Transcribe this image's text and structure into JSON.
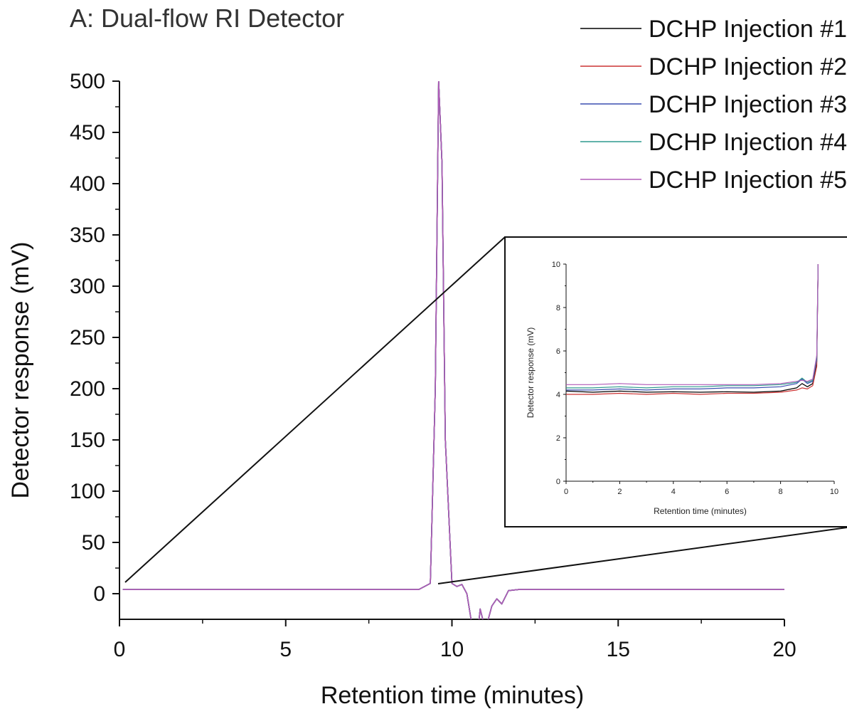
{
  "chart_data": [
    {
      "type": "line",
      "title": "A: Dual-flow RI Detector",
      "xlabel": "Retention time (minutes)",
      "ylabel": "Detector response (mV)",
      "xlim": [
        0,
        20
      ],
      "ylim": [
        -25,
        500
      ],
      "x_ticks": [
        "0",
        "5",
        "10",
        "15",
        "20"
      ],
      "y_ticks": [
        "0",
        "50",
        "100",
        "150",
        "200",
        "250",
        "300",
        "350",
        "400",
        "450",
        "500"
      ],
      "grid": false,
      "legend_position": "top-right",
      "series": [
        {
          "name": "DCHP Injection #1",
          "color": "#000000",
          "x": [
            0.1,
            9.0,
            9.35,
            9.5,
            9.6,
            9.7,
            9.8,
            10.0,
            10.15,
            10.3,
            10.45,
            10.6,
            10.8,
            10.85,
            10.95,
            11.05,
            11.2,
            11.35,
            11.5,
            11.7,
            12.0,
            20.0
          ],
          "y": [
            4,
            4,
            10,
            200,
            500,
            420,
            150,
            10,
            7,
            9,
            0,
            -30,
            -30,
            -15,
            -28,
            -30,
            -12,
            -5,
            -10,
            3,
            4,
            4
          ]
        },
        {
          "name": "DCHP Injection #2",
          "color": "#cc3333",
          "x": [
            0.1,
            9.0,
            9.35,
            9.5,
            9.6,
            9.7,
            9.8,
            10.0,
            10.15,
            10.3,
            10.45,
            10.6,
            10.8,
            10.85,
            10.95,
            11.05,
            11.2,
            11.35,
            11.5,
            11.7,
            12.0,
            20.0
          ],
          "y": [
            4,
            4,
            10,
            200,
            500,
            420,
            150,
            10,
            7,
            9,
            0,
            -30,
            -30,
            -15,
            -28,
            -30,
            -12,
            -5,
            -10,
            3,
            4,
            4
          ]
        },
        {
          "name": "DCHP Injection #3",
          "color": "#3a4fb0",
          "x": [
            0.1,
            9.0,
            9.35,
            9.5,
            9.6,
            9.7,
            9.8,
            10.0,
            10.15,
            10.3,
            10.45,
            10.6,
            10.8,
            10.85,
            10.95,
            11.05,
            11.2,
            11.35,
            11.5,
            11.7,
            12.0,
            20.0
          ],
          "y": [
            4,
            4,
            10,
            200,
            500,
            420,
            150,
            10,
            7,
            9,
            0,
            -30,
            -30,
            -15,
            -28,
            -30,
            -12,
            -5,
            -10,
            3,
            4,
            4
          ]
        },
        {
          "name": "DCHP Injection #4",
          "color": "#2f9a8e",
          "x": [
            0.1,
            9.0,
            9.35,
            9.5,
            9.6,
            9.7,
            9.8,
            10.0,
            10.15,
            10.3,
            10.45,
            10.6,
            10.8,
            10.85,
            10.95,
            11.05,
            11.2,
            11.35,
            11.5,
            11.7,
            12.0,
            20.0
          ],
          "y": [
            4,
            4,
            10,
            200,
            500,
            420,
            150,
            10,
            7,
            9,
            0,
            -30,
            -30,
            -15,
            -28,
            -30,
            -12,
            -5,
            -10,
            3,
            4,
            4
          ]
        },
        {
          "name": "DCHP Injection #5",
          "color": "#b05bb8",
          "x": [
            0.1,
            9.0,
            9.35,
            9.5,
            9.6,
            9.7,
            9.8,
            10.0,
            10.15,
            10.3,
            10.45,
            10.6,
            10.8,
            10.85,
            10.95,
            11.05,
            11.2,
            11.35,
            11.5,
            11.7,
            12.0,
            20.0
          ],
          "y": [
            4,
            4,
            10,
            200,
            500,
            420,
            150,
            10,
            7,
            9,
            0,
            -30,
            -30,
            -15,
            -28,
            -30,
            -12,
            -5,
            -10,
            3,
            4,
            4
          ]
        }
      ]
    },
    {
      "type": "line",
      "title": "",
      "xlabel": "Retention time (minutes)",
      "ylabel": "Detector response (mV)",
      "xlim": [
        0,
        10
      ],
      "ylim": [
        0,
        10
      ],
      "x_ticks": [
        "0",
        "2",
        "4",
        "6",
        "8",
        "10"
      ],
      "y_ticks": [
        "0",
        "2",
        "4",
        "6",
        "8",
        "10"
      ],
      "grid": false,
      "series": [
        {
          "name": "DCHP Injection #1",
          "color": "#000000",
          "x": [
            0,
            1,
            2,
            3,
            4,
            5,
            6,
            7,
            8,
            8.6,
            8.8,
            9.0,
            9.2,
            9.35,
            9.4
          ],
          "y": [
            4.15,
            4.1,
            4.15,
            4.1,
            4.12,
            4.1,
            4.12,
            4.1,
            4.15,
            4.3,
            4.5,
            4.35,
            4.5,
            5.5,
            10
          ]
        },
        {
          "name": "DCHP Injection #2",
          "color": "#cc3333",
          "x": [
            0,
            1,
            2,
            3,
            4,
            5,
            6,
            7,
            8,
            8.6,
            8.8,
            9.0,
            9.2,
            9.35,
            9.4
          ],
          "y": [
            4.0,
            4.0,
            4.05,
            4.0,
            4.05,
            4.0,
            4.05,
            4.05,
            4.1,
            4.2,
            4.3,
            4.25,
            4.4,
            5.3,
            10
          ]
        },
        {
          "name": "DCHP Injection #3",
          "color": "#3a4fb0",
          "x": [
            0,
            1,
            2,
            3,
            4,
            5,
            6,
            7,
            8,
            8.6,
            8.8,
            9.0,
            9.2,
            9.35,
            9.4
          ],
          "y": [
            4.2,
            4.2,
            4.25,
            4.2,
            4.25,
            4.25,
            4.3,
            4.3,
            4.35,
            4.5,
            4.7,
            4.5,
            4.6,
            5.6,
            10
          ]
        },
        {
          "name": "DCHP Injection #4",
          "color": "#2f9a8e",
          "x": [
            0,
            1,
            2,
            3,
            4,
            5,
            6,
            7,
            8,
            8.6,
            8.8,
            9.0,
            9.2,
            9.35,
            9.4
          ],
          "y": [
            4.3,
            4.3,
            4.35,
            4.3,
            4.35,
            4.35,
            4.4,
            4.4,
            4.45,
            4.55,
            4.75,
            4.55,
            4.65,
            5.7,
            10
          ]
        },
        {
          "name": "DCHP Injection #5",
          "color": "#b05bb8",
          "x": [
            0,
            1,
            2,
            3,
            4,
            5,
            6,
            7,
            8,
            8.6,
            8.8,
            9.0,
            9.2,
            9.35,
            9.4
          ],
          "y": [
            4.45,
            4.45,
            4.5,
            4.45,
            4.45,
            4.45,
            4.45,
            4.45,
            4.5,
            4.6,
            4.65,
            4.6,
            4.7,
            5.8,
            10
          ]
        }
      ]
    }
  ]
}
